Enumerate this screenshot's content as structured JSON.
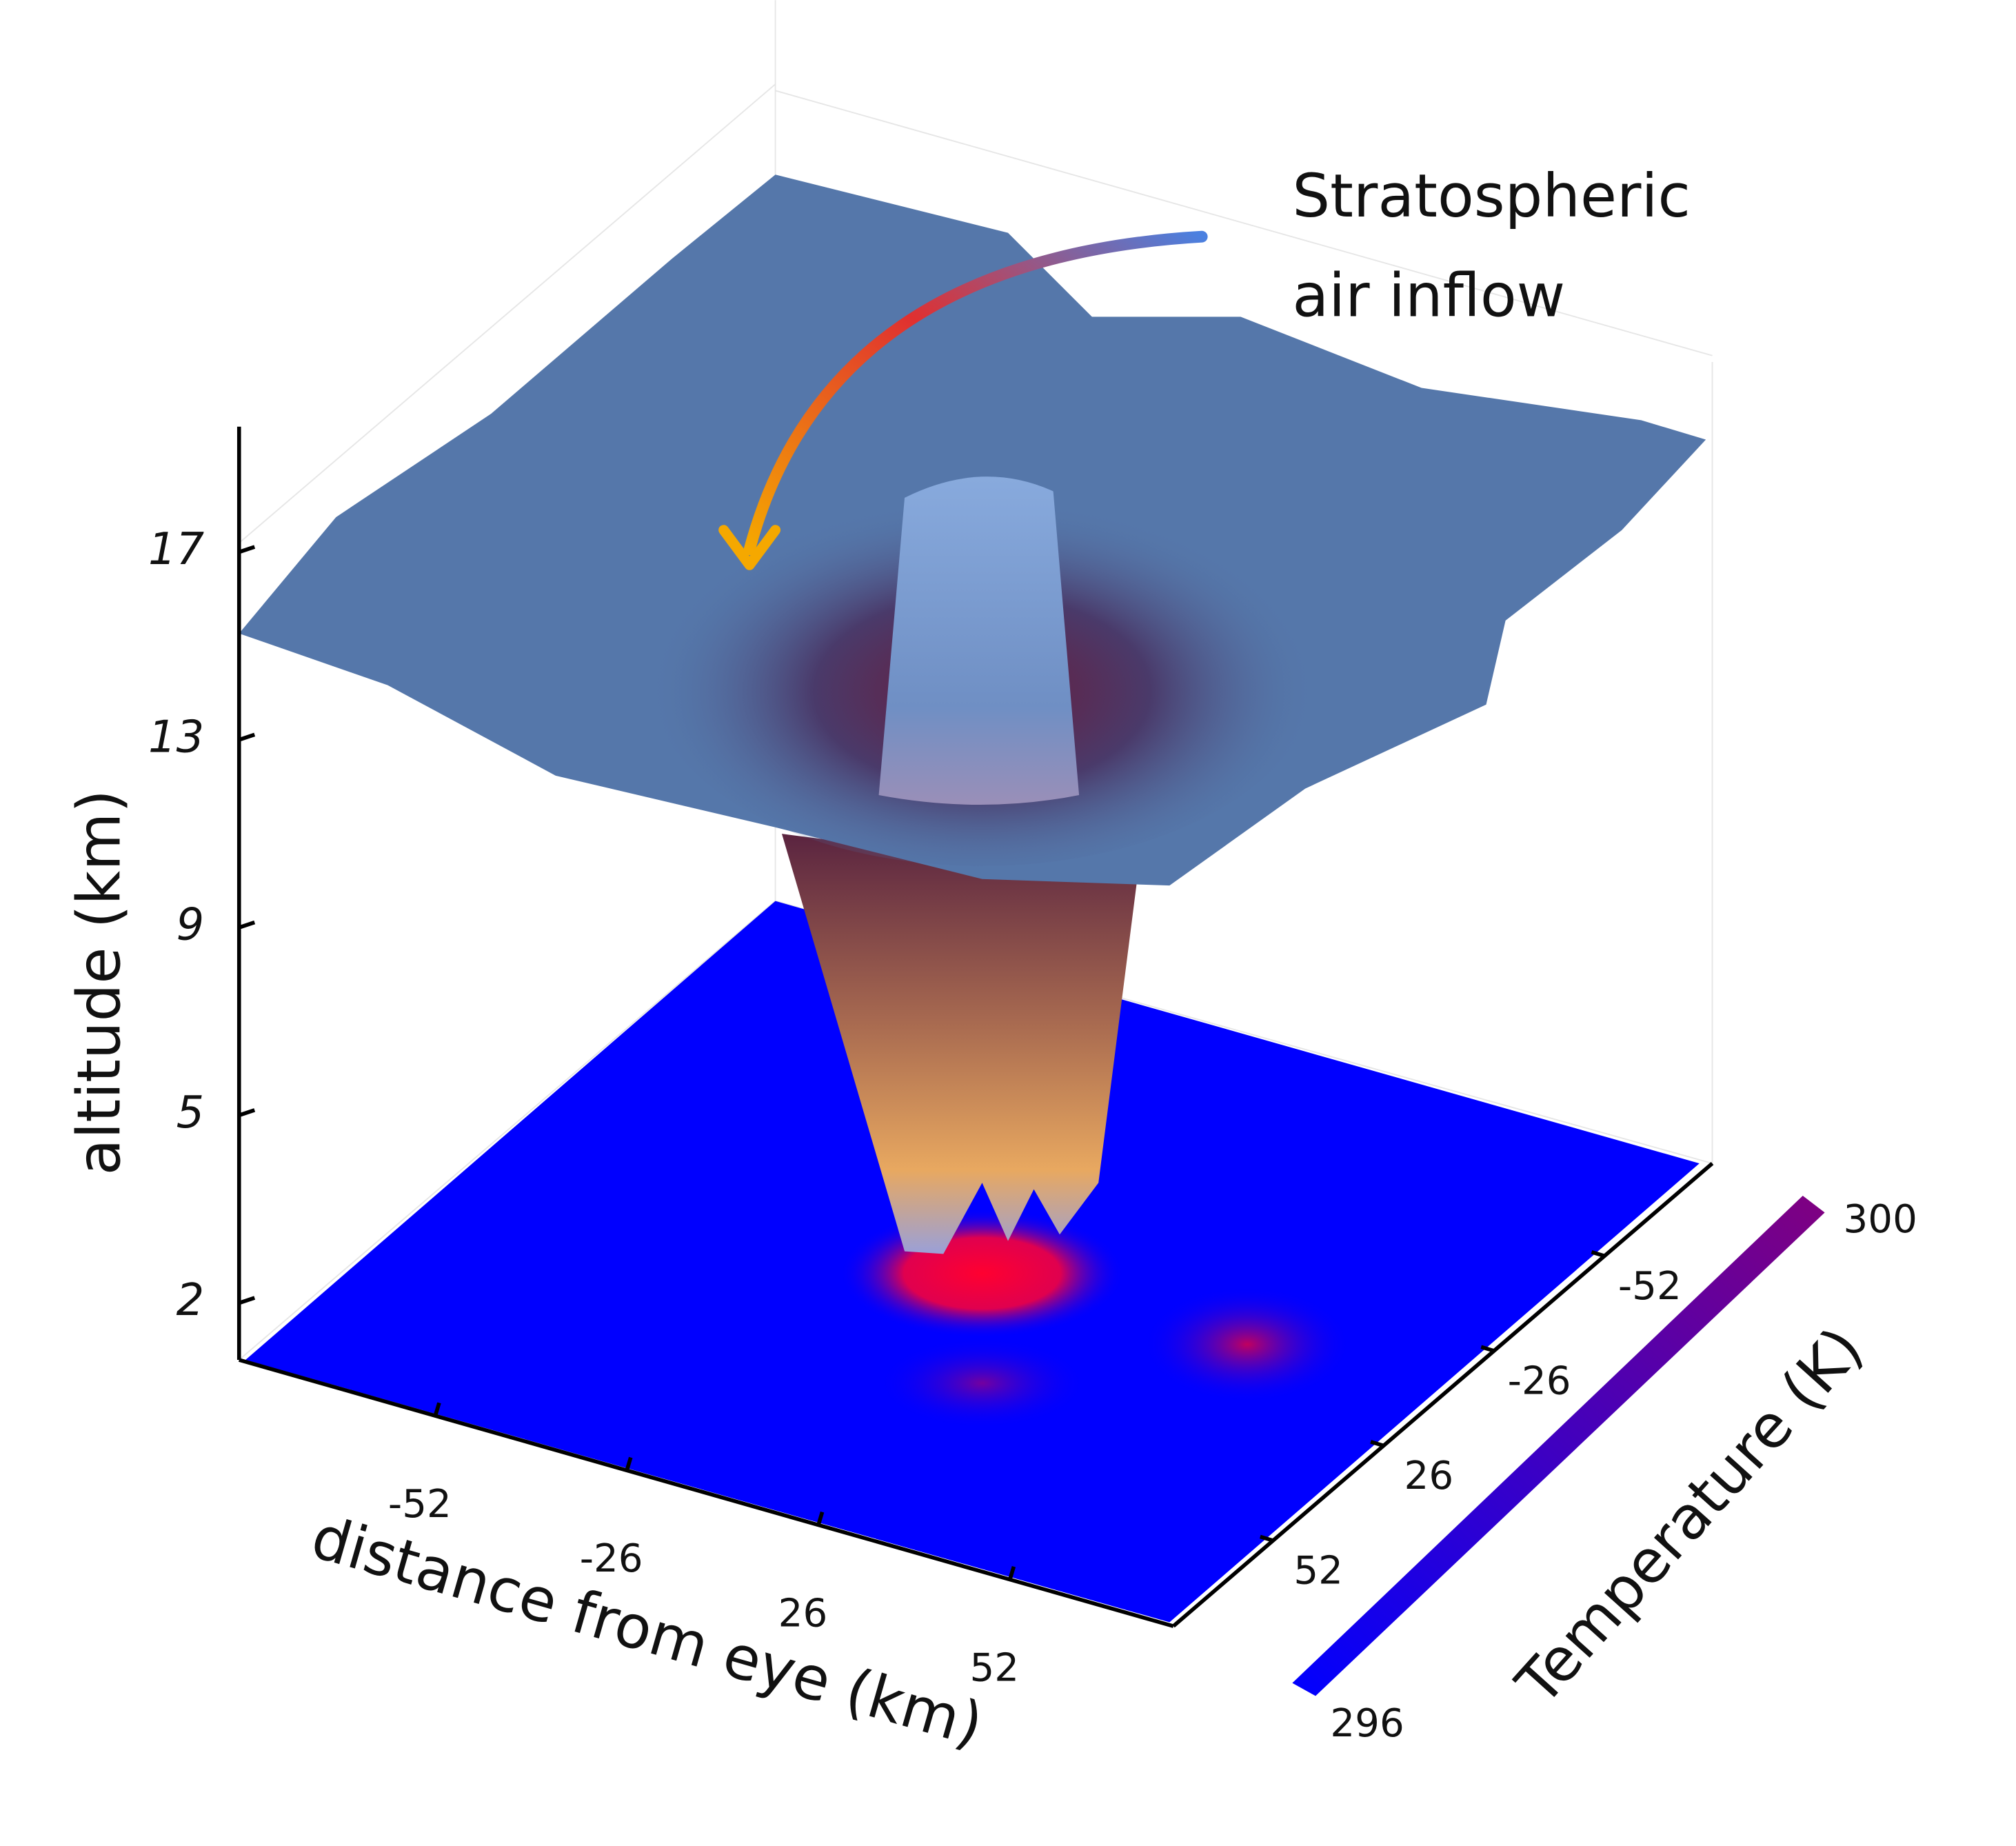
{
  "chart_data": {
    "type": "surface3d",
    "annotation": [
      "Stratospheric",
      "air inflow"
    ],
    "zlabel": "altitude (km)",
    "xlabel": "distance from eye (km)",
    "colorbar_label": "Temperature (K)",
    "xticks": [
      -52,
      -26,
      26,
      52
    ],
    "yticks": [
      -52,
      -26,
      26,
      52
    ],
    "zticks": [
      2,
      5,
      9,
      13,
      17
    ],
    "clim": [
      296,
      300
    ],
    "colormap": [
      "#0000ff",
      "#800080"
    ]
  }
}
